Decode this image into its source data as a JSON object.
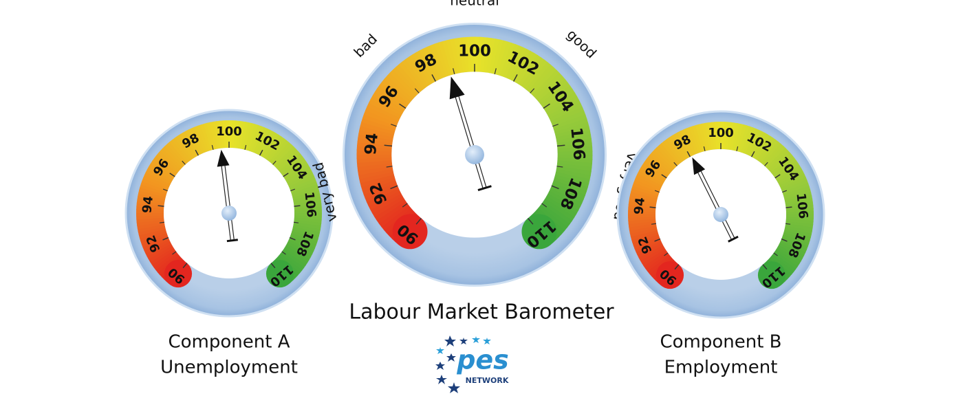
{
  "chart_data": [
    {
      "type": "gauge",
      "title": [
        "Component A",
        "Unemployment"
      ],
      "lim": [
        90,
        110
      ],
      "ticks": [
        90,
        92,
        94,
        96,
        98,
        100,
        102,
        104,
        106,
        108,
        110
      ],
      "minor_ticks": [
        91,
        93,
        95,
        97,
        99,
        101,
        103,
        105,
        107,
        109
      ],
      "value": 99.5
    },
    {
      "type": "gauge",
      "title": [
        "Labour Market Barometer"
      ],
      "lim": [
        90,
        110
      ],
      "ticks": [
        90,
        92,
        94,
        96,
        98,
        100,
        102,
        104,
        106,
        108,
        110
      ],
      "minor_ticks": [
        91,
        93,
        95,
        97,
        99,
        101,
        103,
        105,
        107,
        109
      ],
      "value": 98.8,
      "zone_labels": [
        "very bad",
        "bad",
        "neutral",
        "good",
        "very good"
      ]
    },
    {
      "type": "gauge",
      "title": [
        "Component B",
        "Employment"
      ],
      "lim": [
        90,
        110
      ],
      "ticks": [
        90,
        92,
        94,
        96,
        98,
        100,
        102,
        104,
        106,
        108,
        110
      ],
      "minor_ticks": [
        91,
        93,
        95,
        97,
        99,
        101,
        103,
        105,
        107,
        109
      ],
      "value": 98.1
    }
  ],
  "logo": {
    "name": "pes",
    "sub": "NETWORK"
  }
}
